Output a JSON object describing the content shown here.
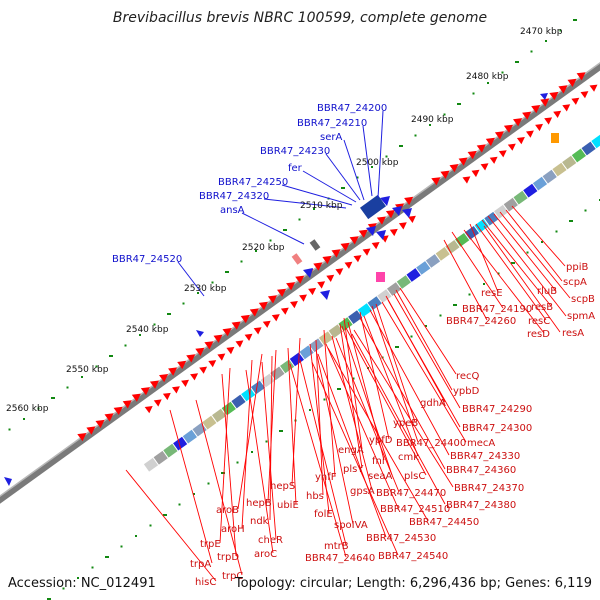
{
  "title": "Brevibacillus brevis NBRC 100599, complete genome",
  "accession": "Accession: NC_012491",
  "summary": "Topology: circular; Length: 6,296,436 bp; Genes: 6,119",
  "colors": {
    "backbone": "#7a7a7a",
    "forward_gene": "#ff0000",
    "reverse_gene": "#1f1fe0",
    "gc_dots": "#118811",
    "blue_label": "#1010cc",
    "red_label": "#cc1010"
  },
  "kbp_ticks": [
    "2470 kbp",
    "2480 kbp",
    "2490 kbp",
    "2500 kbp",
    "2510 kbp",
    "2520 kbp",
    "2530 kbp",
    "2540 kbp",
    "2550 kbp",
    "2560 kbp"
  ],
  "blue_genes": [
    "BBR47_24200",
    "BBR47_24210",
    "serA",
    "BBR47_24230",
    "fer",
    "BBR47_24250",
    "BBR47_24320",
    "ansA",
    "BBR47_24520"
  ],
  "red_genes": [
    "ppiB",
    "scpA",
    "scpB",
    "rluB",
    "spmA",
    "resB",
    "resE",
    "resC",
    "resA",
    "resD",
    "BBR47_24190",
    "BBR47_24260",
    "recQ",
    "ypbD",
    "BBR47_24290",
    "gdhA",
    "BBR47_24300",
    "mecA",
    "ypeB",
    "BBR47_24400",
    "BBR47_24330",
    "ypfD",
    "cmk",
    "BBR47_24360",
    "engA",
    "fni",
    "plsY",
    "seaA",
    "plsC",
    "BBR47_24370",
    "BBR47_24380",
    "yhfF",
    "gpsA",
    "BBR47_24470",
    "hepS",
    "hbs",
    "BBR47_24510",
    "BBR47_24450",
    "folE",
    "ubiE",
    "spoIVA",
    "hepB",
    "aroB",
    "ndk",
    "BBR47_24530",
    "aroH",
    "cheR",
    "mtrB",
    "BBR47_24540",
    "trpE",
    "aroC",
    "BBR47_24640",
    "trpD",
    "trpA",
    "trpC",
    "hisC"
  ]
}
